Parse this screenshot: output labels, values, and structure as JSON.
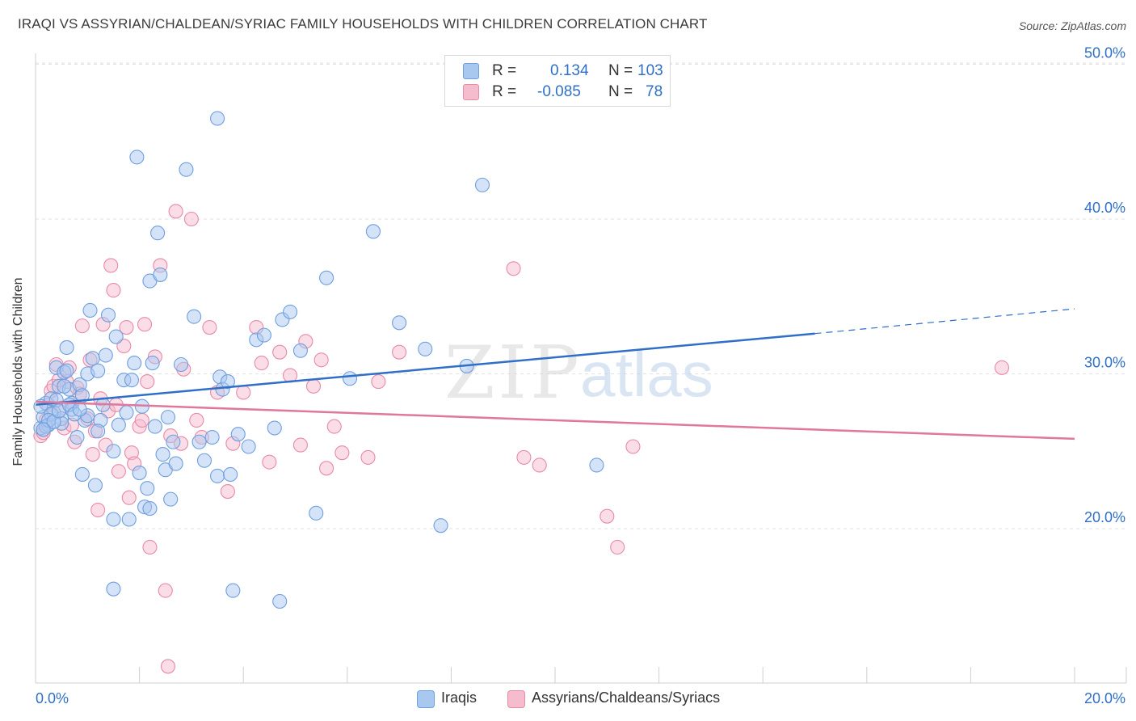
{
  "header": {
    "title": "IRAQI VS ASSYRIAN/CHALDEAN/SYRIAC FAMILY HOUSEHOLDS WITH CHILDREN CORRELATION CHART",
    "source": "Source: ZipAtlas.com"
  },
  "watermark": {
    "zip": "ZIP",
    "atlas": "atlas"
  },
  "legend": {
    "iraqis": {
      "r_label": "R =",
      "r_value": "0.134",
      "n_label": "N =",
      "n_value": "103"
    },
    "assyrians": {
      "r_label": "R =",
      "r_value": "-0.085",
      "n_label": "N =",
      "n_value": "78"
    }
  },
  "bottom_legend": {
    "iraqis": "Iraqis",
    "assyrians": "Assyrians/Chaldeans/Syriacs"
  },
  "colors": {
    "blue_fill": "#a9c8f0",
    "blue_stroke": "#6f9fde",
    "blue_line": "#2f6fc7",
    "pink_fill": "#f5bccd",
    "pink_stroke": "#e88aa8",
    "pink_line": "#e0779c",
    "grid": "#e2e2e2",
    "axis_text": "#2f6fc7"
  },
  "chart_data": {
    "type": "scatter",
    "title": "IRAQI VS ASSYRIAN/CHALDEAN/SYRIAC FAMILY HOUSEHOLDS WITH CHILDREN CORRELATION CHART",
    "xlabel": "",
    "ylabel": "Family Households with Children",
    "xlim": [
      0,
      20
    ],
    "ylim": [
      10,
      51
    ],
    "x_tick_labels": [
      "0.0%",
      "20.0%"
    ],
    "y_ticks": [
      20,
      30,
      40,
      50
    ],
    "y_tick_labels": [
      "20.0%",
      "30.0%",
      "40.0%",
      "50.0%"
    ],
    "grid": true,
    "series": [
      {
        "name": "Iraqis",
        "trend": {
          "x0": 0,
          "y0": 28.0,
          "x1": 15.0,
          "y1": 32.6,
          "dash_to_x": 20.0,
          "dash_to_y": 34.2
        },
        "points": [
          [
            0.1,
            26.5
          ],
          [
            0.15,
            27.2
          ],
          [
            0.2,
            28.1
          ],
          [
            0.25,
            26.7
          ],
          [
            0.3,
            28.4
          ],
          [
            0.35,
            27.5
          ],
          [
            0.4,
            30.4
          ],
          [
            0.45,
            29.2
          ],
          [
            0.5,
            27.1
          ],
          [
            0.55,
            30.1
          ],
          [
            0.6,
            31.7
          ],
          [
            0.65,
            29.0
          ],
          [
            0.7,
            28.1
          ],
          [
            0.8,
            25.9
          ],
          [
            0.85,
            29.3
          ],
          [
            0.9,
            23.5
          ],
          [
            0.95,
            27.0
          ],
          [
            1.0,
            30.0
          ],
          [
            1.05,
            34.1
          ],
          [
            1.1,
            31.0
          ],
          [
            1.15,
            22.8
          ],
          [
            1.2,
            30.2
          ],
          [
            1.25,
            27.0
          ],
          [
            1.3,
            28.0
          ],
          [
            1.35,
            31.2
          ],
          [
            1.4,
            33.8
          ],
          [
            1.5,
            20.6
          ],
          [
            1.5,
            25.0
          ],
          [
            1.55,
            32.4
          ],
          [
            1.6,
            26.7
          ],
          [
            1.7,
            29.6
          ],
          [
            1.75,
            27.5
          ],
          [
            1.8,
            20.6
          ],
          [
            1.85,
            29.6
          ],
          [
            1.9,
            30.7
          ],
          [
            1.95,
            44.0
          ],
          [
            2.0,
            23.6
          ],
          [
            2.05,
            27.9
          ],
          [
            2.1,
            21.4
          ],
          [
            2.15,
            22.6
          ],
          [
            2.2,
            36.0
          ],
          [
            2.25,
            30.7
          ],
          [
            2.3,
            26.6
          ],
          [
            2.35,
            39.1
          ],
          [
            2.4,
            36.4
          ],
          [
            2.45,
            24.8
          ],
          [
            2.5,
            23.8
          ],
          [
            2.55,
            27.2
          ],
          [
            2.6,
            21.9
          ],
          [
            2.65,
            25.6
          ],
          [
            2.7,
            24.2
          ],
          [
            2.8,
            30.6
          ],
          [
            2.9,
            43.2
          ],
          [
            3.05,
            33.7
          ],
          [
            3.15,
            25.6
          ],
          [
            3.25,
            24.4
          ],
          [
            3.4,
            25.9
          ],
          [
            3.5,
            23.4
          ],
          [
            3.55,
            29.8
          ],
          [
            3.6,
            29.0
          ],
          [
            3.7,
            29.5
          ],
          [
            3.75,
            23.5
          ],
          [
            3.5,
            46.5
          ],
          [
            3.8,
            16.0
          ],
          [
            3.9,
            26.1
          ],
          [
            4.1,
            25.3
          ],
          [
            4.25,
            32.2
          ],
          [
            4.4,
            32.5
          ],
          [
            4.6,
            26.5
          ],
          [
            4.7,
            15.3
          ],
          [
            4.75,
            33.5
          ],
          [
            4.9,
            34.0
          ],
          [
            5.1,
            31.5
          ],
          [
            5.6,
            36.2
          ],
          [
            5.4,
            21.0
          ],
          [
            6.05,
            29.7
          ],
          [
            6.5,
            39.2
          ],
          [
            7.0,
            33.3
          ],
          [
            7.5,
            31.6
          ],
          [
            7.8,
            20.2
          ],
          [
            8.3,
            30.5
          ],
          [
            8.6,
            42.2
          ],
          [
            0.1,
            27.9
          ],
          [
            0.2,
            26.6
          ],
          [
            0.3,
            27.4
          ],
          [
            0.5,
            26.8
          ],
          [
            0.7,
            27.7
          ],
          [
            1.0,
            27.3
          ],
          [
            1.2,
            26.3
          ],
          [
            0.9,
            28.6
          ],
          [
            0.4,
            28.3
          ],
          [
            0.6,
            30.2
          ],
          [
            1.5,
            16.1
          ],
          [
            2.2,
            21.3
          ],
          [
            10.8,
            24.1
          ],
          [
            0.25,
            27.0
          ],
          [
            0.35,
            26.9
          ],
          [
            0.45,
            27.6
          ],
          [
            0.55,
            29.2
          ],
          [
            0.65,
            28.0
          ],
          [
            0.75,
            27.4
          ],
          [
            0.85,
            27.7
          ],
          [
            0.15,
            26.4
          ]
        ]
      },
      {
        "name": "Assyrians/Chaldeans/Syriacs",
        "trend": {
          "x0": 0,
          "y0": 28.2,
          "x1": 20.0,
          "y1": 25.8
        },
        "points": [
          [
            0.1,
            26.0
          ],
          [
            0.2,
            27.0
          ],
          [
            0.3,
            28.9
          ],
          [
            0.35,
            29.2
          ],
          [
            0.4,
            30.6
          ],
          [
            0.5,
            27.8
          ],
          [
            0.55,
            26.5
          ],
          [
            0.6,
            29.5
          ],
          [
            0.7,
            26.7
          ],
          [
            0.75,
            25.6
          ],
          [
            0.8,
            29.1
          ],
          [
            0.85,
            28.7
          ],
          [
            0.9,
            33.1
          ],
          [
            1.0,
            27.1
          ],
          [
            1.05,
            30.9
          ],
          [
            1.1,
            24.8
          ],
          [
            1.15,
            26.3
          ],
          [
            1.2,
            21.2
          ],
          [
            1.25,
            28.4
          ],
          [
            1.3,
            33.2
          ],
          [
            1.35,
            25.4
          ],
          [
            1.4,
            27.6
          ],
          [
            1.45,
            37.0
          ],
          [
            1.5,
            35.4
          ],
          [
            1.55,
            28.0
          ],
          [
            1.6,
            23.7
          ],
          [
            1.7,
            31.8
          ],
          [
            1.75,
            33.0
          ],
          [
            1.8,
            22.0
          ],
          [
            1.85,
            24.9
          ],
          [
            1.9,
            24.2
          ],
          [
            2.0,
            26.6
          ],
          [
            2.05,
            27.0
          ],
          [
            2.1,
            33.2
          ],
          [
            2.15,
            29.5
          ],
          [
            2.2,
            18.8
          ],
          [
            2.3,
            31.1
          ],
          [
            2.4,
            37.0
          ],
          [
            2.5,
            16.0
          ],
          [
            2.55,
            11.1
          ],
          [
            2.6,
            26.0
          ],
          [
            2.7,
            40.5
          ],
          [
            2.8,
            25.5
          ],
          [
            2.85,
            30.3
          ],
          [
            3.0,
            40.0
          ],
          [
            3.1,
            27.0
          ],
          [
            3.2,
            25.9
          ],
          [
            3.35,
            33.0
          ],
          [
            3.5,
            28.8
          ],
          [
            3.7,
            22.4
          ],
          [
            3.8,
            25.5
          ],
          [
            4.0,
            28.8
          ],
          [
            4.25,
            33.0
          ],
          [
            4.35,
            30.7
          ],
          [
            4.5,
            24.3
          ],
          [
            4.7,
            31.4
          ],
          [
            4.9,
            29.9
          ],
          [
            5.1,
            25.4
          ],
          [
            5.2,
            32.1
          ],
          [
            5.35,
            29.2
          ],
          [
            5.5,
            30.9
          ],
          [
            5.6,
            23.9
          ],
          [
            5.75,
            26.6
          ],
          [
            5.9,
            24.9
          ],
          [
            6.4,
            24.6
          ],
          [
            6.6,
            29.5
          ],
          [
            7.0,
            31.4
          ],
          [
            9.2,
            36.8
          ],
          [
            9.4,
            24.6
          ],
          [
            9.7,
            24.1
          ],
          [
            11.0,
            20.8
          ],
          [
            11.2,
            18.8
          ],
          [
            11.5,
            25.3
          ],
          [
            18.6,
            30.4
          ],
          [
            0.15,
            26.2
          ],
          [
            0.25,
            28.0
          ],
          [
            0.45,
            29.6
          ],
          [
            0.65,
            30.4
          ]
        ]
      }
    ]
  }
}
